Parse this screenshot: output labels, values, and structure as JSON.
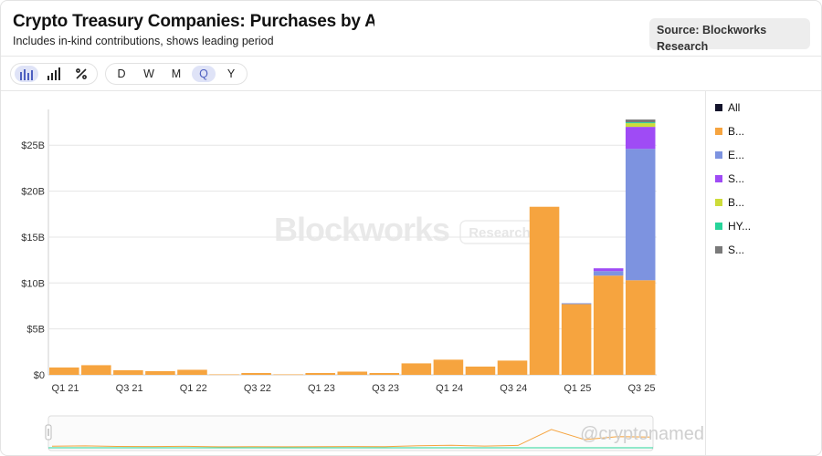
{
  "header": {
    "title": "Crypto Treasury Companies: Purchases by Asset",
    "subtitle": "Includes in-kind contributions, shows leading period",
    "source": "Source: Blockworks Research"
  },
  "toolbar": {
    "chart_types": [
      {
        "icon": "bar-chart-icon",
        "active": true
      },
      {
        "icon": "stacked-bars-icon",
        "active": false
      },
      {
        "icon": "percent-icon",
        "active": false
      }
    ],
    "periods": [
      {
        "label": "D",
        "active": false
      },
      {
        "label": "W",
        "active": false
      },
      {
        "label": "M",
        "active": false
      },
      {
        "label": "Q",
        "active": true
      },
      {
        "label": "Y",
        "active": false
      }
    ]
  },
  "watermark": {
    "brand": "Blockworks",
    "badge": "Research"
  },
  "overlay_watermark": "@cryptonamed",
  "legend": [
    {
      "label": "All",
      "color": "#14142b"
    },
    {
      "label": "B...",
      "color": "#f6a43f"
    },
    {
      "label": "E...",
      "color": "#7d93e0"
    },
    {
      "label": "S...",
      "color": "#9f4bf5"
    },
    {
      "label": "B...",
      "color": "#cddc39"
    },
    {
      "label": "HY...",
      "color": "#27d49a"
    },
    {
      "label": "S...",
      "color": "#7a7a7a"
    }
  ],
  "chart_data": {
    "type": "bar",
    "stacked": true,
    "categories": [
      "Q1 21",
      "Q2 21",
      "Q3 21",
      "Q4 21",
      "Q1 22",
      "Q2 22",
      "Q3 22",
      "Q4 22",
      "Q1 23",
      "Q2 23",
      "Q3 23",
      "Q4 23",
      "Q1 24",
      "Q2 24",
      "Q3 24",
      "Q4 24",
      "Q1 25",
      "Q2 25",
      "Q3 25"
    ],
    "xtick_labels": [
      "Q1 21",
      "Q3 21",
      "Q1 22",
      "Q3 22",
      "Q1 23",
      "Q3 23",
      "Q1 24",
      "Q3 24",
      "Q1 25",
      "Q3 25"
    ],
    "yticks": [
      "$0",
      "$5B",
      "$10B",
      "$15B",
      "$20B",
      "$25B"
    ],
    "ytick_values": [
      0,
      5,
      10,
      15,
      20,
      25
    ],
    "ylim": [
      0,
      28.5
    ],
    "unit": "$B",
    "series": [
      {
        "name": "B...",
        "color": "#f6a43f",
        "values": [
          0.8,
          1.05,
          0.5,
          0.4,
          0.55,
          0.05,
          0.2,
          0.05,
          0.2,
          0.35,
          0.2,
          1.25,
          1.65,
          0.9,
          1.55,
          18.3,
          7.7,
          10.8,
          10.3
        ]
      },
      {
        "name": "E...",
        "color": "#7d93e0",
        "values": [
          0,
          0,
          0,
          0,
          0,
          0,
          0,
          0,
          0,
          0,
          0,
          0,
          0,
          0,
          0,
          0,
          0.1,
          0.5,
          14.3
        ]
      },
      {
        "name": "S...",
        "color": "#9f4bf5",
        "values": [
          0,
          0,
          0,
          0,
          0,
          0,
          0,
          0,
          0,
          0,
          0,
          0,
          0,
          0,
          0,
          0,
          0,
          0.3,
          2.4
        ]
      },
      {
        "name": "B...",
        "color": "#cddc39",
        "values": [
          0,
          0,
          0,
          0,
          0,
          0,
          0,
          0,
          0,
          0,
          0,
          0,
          0,
          0,
          0,
          0,
          0,
          0,
          0.4
        ]
      },
      {
        "name": "HY...",
        "color": "#27d49a",
        "values": [
          0,
          0,
          0,
          0,
          0,
          0,
          0,
          0,
          0,
          0,
          0,
          0,
          0,
          0,
          0,
          0,
          0,
          0,
          0.1
        ]
      },
      {
        "name": "S...",
        "color": "#7a7a7a",
        "values": [
          0,
          0,
          0,
          0,
          0,
          0,
          0,
          0,
          0,
          0,
          0,
          0,
          0,
          0,
          0,
          0,
          0,
          0,
          0.3
        ]
      }
    ],
    "grid": true,
    "legend_position": "right"
  }
}
